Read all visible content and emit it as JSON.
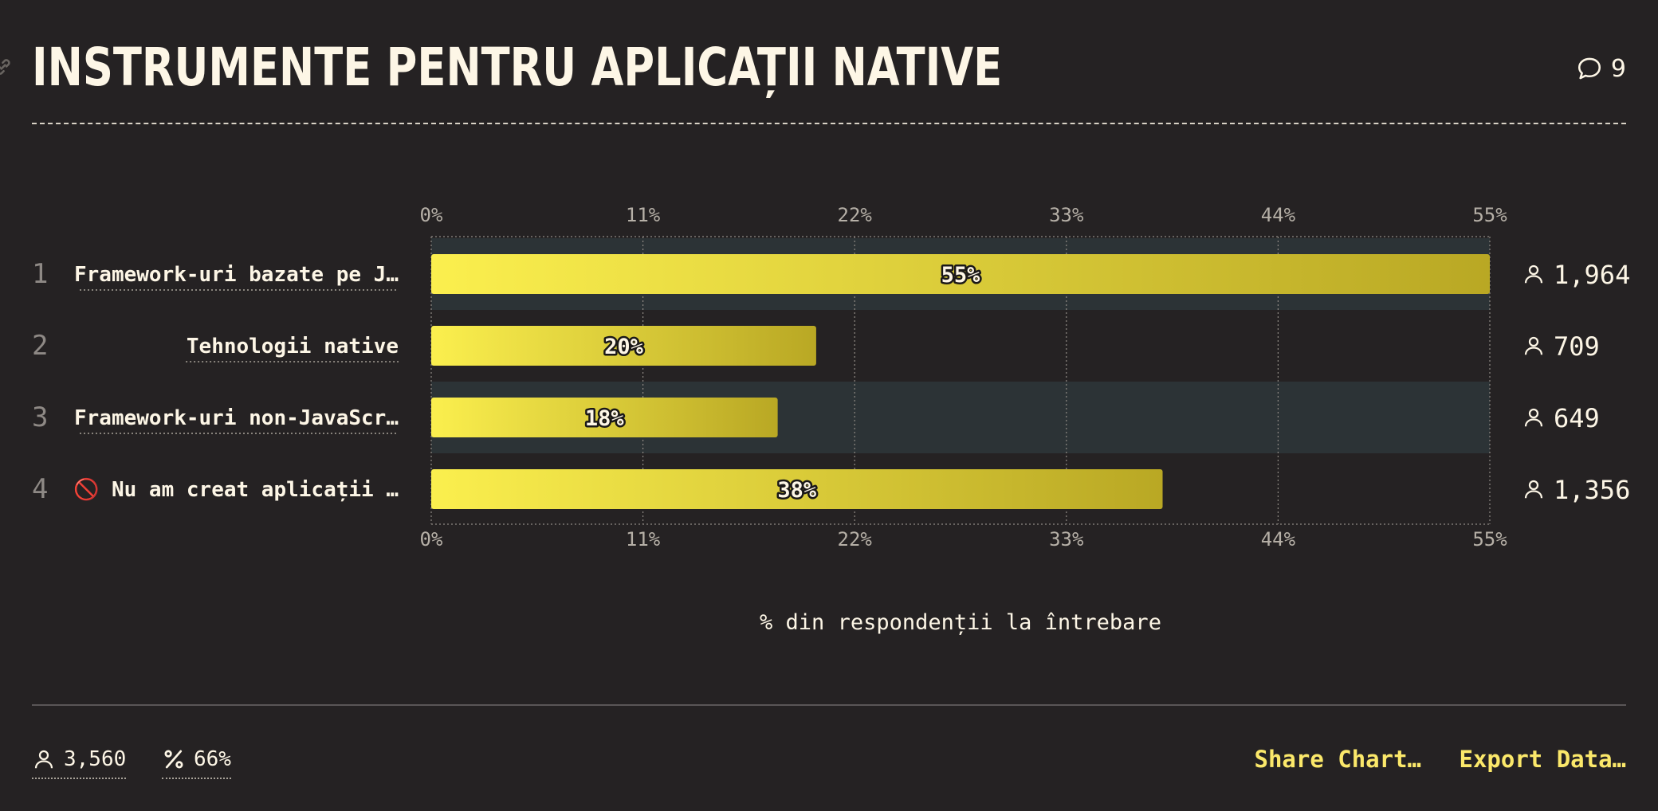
{
  "header": {
    "title": "INSTRUMENTE PENTRU APLICAȚII NATIVE",
    "comment_count": "9"
  },
  "colors": {
    "background": "#252223",
    "bar_start": "#fbef4e",
    "bar_end": "#b9a824",
    "row_highlight": "#2c3336",
    "accent_link": "#fbe86a"
  },
  "icons": [
    "link-icon",
    "comment-icon",
    "user-icon",
    "percent-icon",
    "no-entry-icon"
  ],
  "chart_data": {
    "type": "bar",
    "orientation": "horizontal",
    "categories": [
      "Framework-uri bazate pe J…",
      "Tehnologii native",
      "Framework-uri non-JavaScr…",
      "🚫 Nu am creat aplicații …"
    ],
    "ranks": [
      "1",
      "2",
      "3",
      "4"
    ],
    "values": [
      55,
      20,
      18,
      38
    ],
    "value_labels": [
      "55%",
      "20%",
      "18%",
      "38%"
    ],
    "counts": [
      "1,964",
      "709",
      "649",
      "1,356"
    ],
    "xlim": [
      0,
      55
    ],
    "xticks": [
      "0%",
      "11%",
      "22%",
      "33%",
      "44%",
      "55%"
    ],
    "xlabel": "% din respondenții la întrebare",
    "grid": true
  },
  "footer": {
    "respondents": "3,560",
    "percent": "66%",
    "share_label": "Share Chart…",
    "export_label": "Export Data…"
  }
}
